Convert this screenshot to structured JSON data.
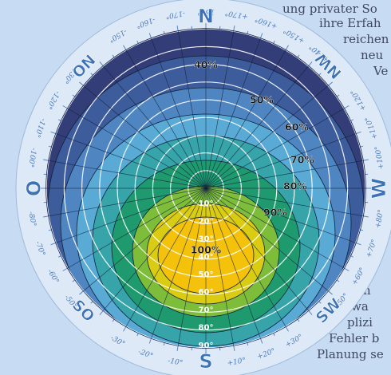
{
  "background_text": [
    "ung privater So",
    "ihre Erfah",
    "reichen",
    "neu",
    "Ve",
    "n",
    "wa",
    "plizi",
    "Fehler b",
    "Planung se"
  ],
  "compass": {
    "cardinals": [
      {
        "label": "N",
        "angle": 180
      },
      {
        "label": "O",
        "angle": -90
      },
      {
        "label": "S",
        "angle": 0
      },
      {
        "label": "W",
        "angle": 90
      },
      {
        "label": "NW",
        "angle": 135
      },
      {
        "label": "NO",
        "angle": -135
      },
      {
        "label": "SW",
        "angle": 45
      },
      {
        "label": "SO",
        "angle": -45
      }
    ],
    "azimuth_labels": [
      {
        "label": "180°",
        "angle": 180
      },
      {
        "label": "-170°",
        "angle": -170
      },
      {
        "label": "-160°",
        "angle": -160
      },
      {
        "label": "-150°",
        "angle": -150
      },
      {
        "label": "-130°",
        "angle": -130
      },
      {
        "label": "-120°",
        "angle": -120
      },
      {
        "label": "-110°",
        "angle": -110
      },
      {
        "label": "-100°",
        "angle": -100
      },
      {
        "label": "-80°",
        "angle": -80
      },
      {
        "label": "-70°",
        "angle": -70
      },
      {
        "label": "-60°",
        "angle": -60
      },
      {
        "label": "-50°",
        "angle": -50
      },
      {
        "label": "-30°",
        "angle": -30
      },
      {
        "label": "-20°",
        "angle": -20
      },
      {
        "label": "-10°",
        "angle": -10
      },
      {
        "label": "+10°",
        "angle": 10
      },
      {
        "label": "+20°",
        "angle": 20
      },
      {
        "label": "+30°",
        "angle": 30
      },
      {
        "label": "+50°",
        "angle": 50
      },
      {
        "label": "+60°",
        "angle": 60
      },
      {
        "label": "+70°",
        "angle": 70
      },
      {
        "label": "+80°",
        "angle": 80
      },
      {
        "label": "+100°",
        "angle": 100
      },
      {
        "label": "+110°",
        "angle": 110
      },
      {
        "label": "+120°",
        "angle": 120
      },
      {
        "label": "+140°",
        "angle": 140
      },
      {
        "label": "+150°",
        "angle": 150
      },
      {
        "label": "+160°",
        "angle": 160
      },
      {
        "label": "+170°",
        "angle": 170
      }
    ]
  },
  "tilt_labels": [
    "10°",
    "20°",
    "30°",
    "40°",
    "50°",
    "60°",
    "70°",
    "80°",
    "90°"
  ],
  "yield_zones": [
    {
      "label": "40%",
      "color": "#333d78"
    },
    {
      "label": "50%",
      "color": "#3d5c9c"
    },
    {
      "label": "60%",
      "color": "#4f86c2"
    },
    {
      "label": "70%",
      "color": "#5aaad6"
    },
    {
      "label": "80%",
      "color": "#37a4a9"
    },
    {
      "label": "90%",
      "color": "#1f9a6e"
    },
    {
      "label": "",
      "color": "#7dbd3a"
    },
    {
      "label": "",
      "color": "#d9cc12"
    },
    {
      "label": "100%",
      "color": "#f4c20a"
    }
  ],
  "colors": {
    "ring": "#dde9f7",
    "ring_text": "#4a79b8",
    "cardinal": "#3d73b5",
    "grid": "#ffffff",
    "outline": "#0f1a3a"
  }
}
